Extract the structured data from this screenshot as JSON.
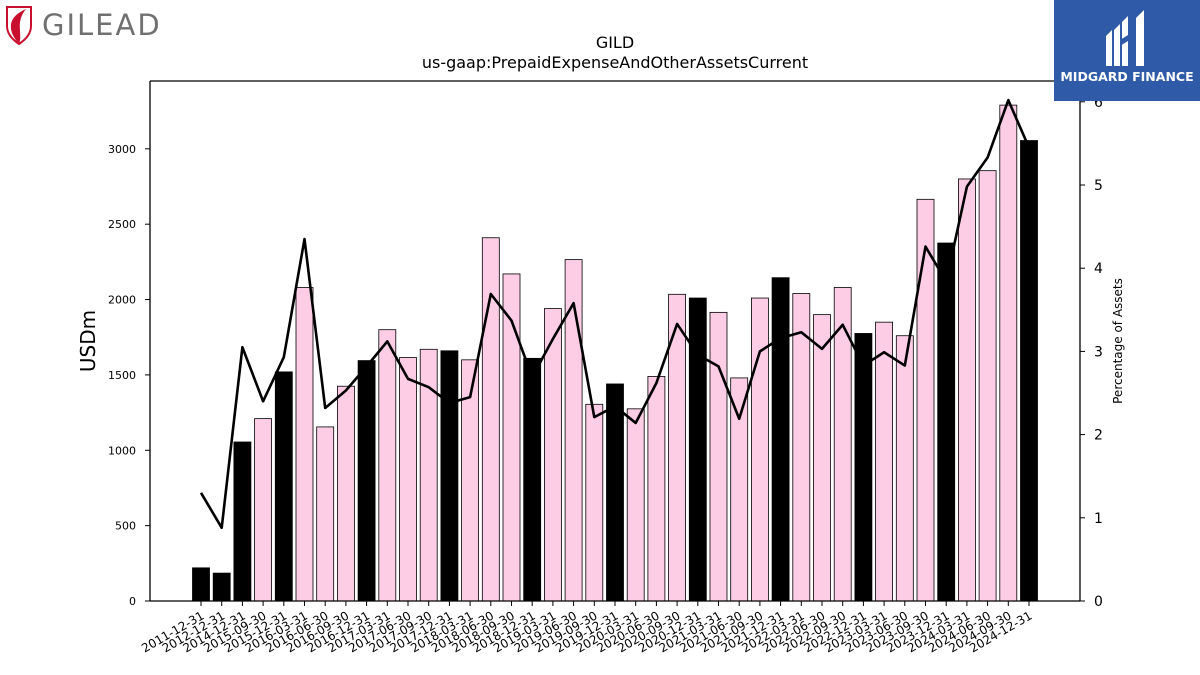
{
  "brand": {
    "left_logo_text": "GILEAD",
    "right_logo_text": "MIDGARD FINANCE"
  },
  "chart_data": {
    "type": "bar",
    "title": "GILD",
    "subtitle": "us-gaap:PrepaidExpenseAndOtherAssetsCurrent",
    "ylabel": "USDm",
    "y2label": "Percentage of Assets",
    "ylim": [
      0,
      3450
    ],
    "y2lim": [
      0,
      6.25
    ],
    "yticks": [
      0,
      500,
      1000,
      1500,
      2000,
      2500,
      3000
    ],
    "y2ticks": [
      0,
      1,
      2,
      3,
      4,
      5,
      6
    ],
    "grid": false,
    "colors": {
      "annual": "#000000",
      "quarterly": "#fccde5",
      "line": "#000000",
      "edge": "#000000"
    },
    "categories": [
      "2011-12-31",
      "2012-12-31",
      "2014-12-31",
      "2015-09-30",
      "2015-12-31",
      "2016-03-31",
      "2016-06-30",
      "2016-09-30",
      "2016-12-31",
      "2017-03-31",
      "2017-06-30",
      "2017-09-30",
      "2017-12-31",
      "2018-03-31",
      "2018-06-30",
      "2018-09-30",
      "2018-12-31",
      "2019-03-31",
      "2019-06-30",
      "2019-09-30",
      "2019-12-31",
      "2020-03-31",
      "2020-06-30",
      "2020-09-30",
      "2020-12-31",
      "2021-03-31",
      "2021-06-30",
      "2021-09-30",
      "2021-12-31",
      "2022-03-31",
      "2022-06-30",
      "2022-09-30",
      "2022-12-31",
      "2023-03-31",
      "2023-06-30",
      "2023-09-30",
      "2023-12-31",
      "2024-03-31",
      "2024-06-30",
      "2024-09-30",
      "2024-12-31"
    ],
    "series": [
      {
        "name": "PrepaidExpenseAndOtherAssetsCurrent",
        "axis": "left",
        "values": [
          220,
          185,
          1055,
          1210,
          1520,
          2080,
          1155,
          1425,
          1595,
          1800,
          1615,
          1670,
          1660,
          1600,
          2410,
          2170,
          1610,
          1940,
          2265,
          1305,
          1440,
          1275,
          1490,
          2035,
          2010,
          1915,
          1480,
          2010,
          2145,
          2040,
          1900,
          2080,
          1775,
          1850,
          1760,
          2665,
          2375,
          2800,
          2855,
          3290,
          3055
        ],
        "annual": [
          true,
          true,
          true,
          false,
          true,
          false,
          false,
          false,
          true,
          false,
          false,
          false,
          true,
          false,
          false,
          false,
          true,
          false,
          false,
          false,
          true,
          false,
          false,
          false,
          true,
          false,
          false,
          false,
          true,
          false,
          false,
          false,
          true,
          false,
          false,
          false,
          true,
          false,
          false,
          false,
          true
        ]
      },
      {
        "name": "Percentage of Assets",
        "axis": "right",
        "type": "line",
        "values": [
          1.3,
          0.88,
          3.05,
          2.4,
          2.93,
          4.35,
          2.32,
          2.53,
          2.82,
          3.12,
          2.67,
          2.57,
          2.38,
          2.45,
          3.69,
          3.37,
          2.69,
          3.15,
          3.58,
          2.21,
          2.34,
          2.14,
          2.62,
          3.33,
          2.96,
          2.82,
          2.19,
          3.0,
          3.16,
          3.23,
          3.03,
          3.32,
          2.83,
          2.99,
          2.83,
          4.26,
          3.84,
          4.98,
          5.33,
          6.02,
          5.45
        ]
      }
    ]
  }
}
